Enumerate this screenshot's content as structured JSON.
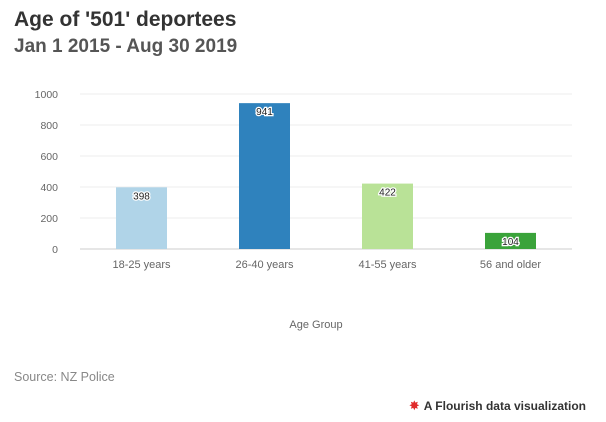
{
  "header": {
    "title": "Age of '501' deportees",
    "subtitle": "Jan 1 2015 - Aug 30 2019"
  },
  "footer": {
    "source": "Source: NZ Police",
    "credit": "A Flourish data visualization",
    "credit_icon": "flourish-burst-icon"
  },
  "chart_data": {
    "type": "bar",
    "title": "Age of '501' deportees",
    "subtitle": "Jan 1 2015 - Aug 30 2019",
    "xlabel": "Age Group",
    "ylabel": "",
    "categories": [
      "18-25 years",
      "26-40 years",
      "41-55 years",
      "56 and older"
    ],
    "values": [
      398,
      941,
      422,
      104
    ],
    "colors": [
      "#b0d4e8",
      "#2f82bd",
      "#b9e297",
      "#3aa33a"
    ],
    "ylim": [
      0,
      1000
    ],
    "yticks": [
      0,
      200,
      400,
      600,
      800,
      1000
    ],
    "grid": true,
    "legend": "none"
  }
}
